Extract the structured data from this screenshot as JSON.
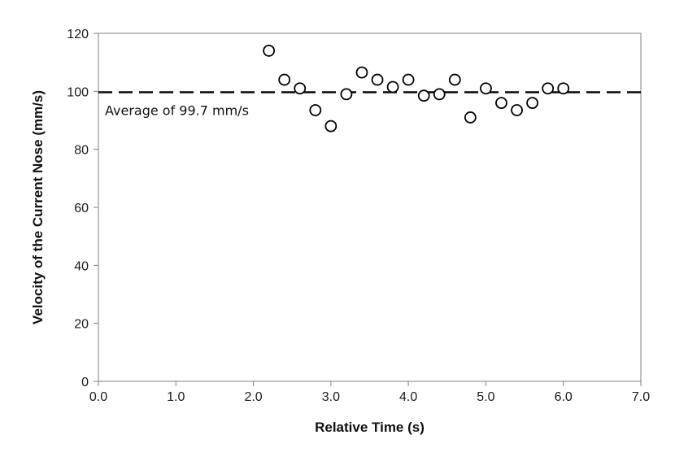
{
  "chart_data": {
    "type": "scatter",
    "xlabel": "Relative Time (s)",
    "ylabel": "Velocity of the Current Nose (mm/s)",
    "xlim": [
      0,
      7
    ],
    "ylim": [
      0,
      120
    ],
    "x_ticks": [
      "0.0",
      "1.0",
      "2.0",
      "3.0",
      "4.0",
      "5.0",
      "6.0",
      "7.0"
    ],
    "y_ticks": [
      "0",
      "20",
      "40",
      "60",
      "80",
      "100",
      "120"
    ],
    "grid": false,
    "marker": "open-circle",
    "series": [
      {
        "x": [
          2.2,
          2.4,
          2.6,
          2.8,
          3.0,
          3.2,
          3.4,
          3.6,
          3.8,
          4.0,
          4.2,
          4.4,
          4.6,
          4.8,
          5.0,
          5.2,
          5.4,
          5.6,
          5.8,
          6.0
        ],
        "y": [
          114,
          104,
          101,
          93.5,
          88,
          99,
          106.5,
          104,
          101.5,
          104,
          98.5,
          99,
          104,
          91,
          101,
          96,
          93.5,
          96,
          101,
          101
        ]
      }
    ],
    "reference_line": {
      "value": 99.7,
      "style": "dashed",
      "label": "Average of 99.7 mm/s"
    },
    "colors": {
      "marker_stroke": "#000000",
      "axis": "#808080",
      "line": "#000000"
    }
  }
}
